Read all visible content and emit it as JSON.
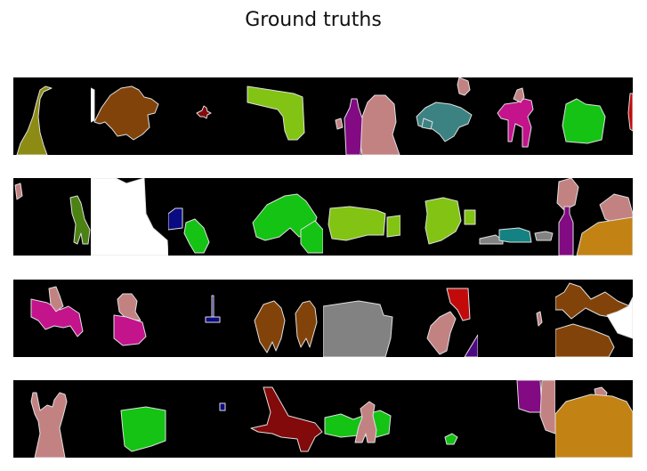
{
  "figure": {
    "title": "Ground truths",
    "background": "#ffffff",
    "tile_background": "#000000",
    "outline_color": "#e0e0e0",
    "rows": [
      {
        "tiles": [
          {
            "shapes": [
              {
                "class": "bird",
                "color": "#8c8c14"
              }
            ]
          },
          {
            "shapes": [
              {
                "class": "background-void",
                "color": "#ffffff"
              },
              {
                "class": "dog",
                "color": "#82430a"
              }
            ]
          },
          {
            "shapes": [
              {
                "class": "aeroplane",
                "color": "#820a0a"
              }
            ]
          },
          {
            "shapes": [
              {
                "class": "sofa",
                "color": "#82c314"
              }
            ]
          },
          {
            "shapes": [
              {
                "class": "person",
                "color": "#c38282"
              },
              {
                "class": "bottle",
                "color": "#820a82"
              }
            ]
          },
          {
            "shapes": [
              {
                "class": "motorbike",
                "color": "#3c8282"
              },
              {
                "class": "person",
                "color": "#c38282"
              }
            ]
          },
          {
            "shapes": [
              {
                "class": "horse",
                "color": "#c3148c"
              },
              {
                "class": "person",
                "color": "#c38282"
              }
            ]
          },
          {
            "shapes": [
              {
                "class": "pottedplant",
                "color": "#14c314"
              },
              {
                "class": "aeroplane",
                "color": "#c30a0a"
              }
            ]
          }
        ]
      },
      {
        "tiles": [
          {
            "shapes": [
              {
                "class": "person",
                "color": "#c38282"
              },
              {
                "class": "cow",
                "color": "#4b8214"
              }
            ]
          },
          {
            "shapes": [
              {
                "class": "background-void",
                "color": "#ffffff"
              }
            ]
          },
          {
            "shapes": [
              {
                "class": "tvmonitor",
                "color": "#0a0a82"
              },
              {
                "class": "bicycle",
                "color": "#14c314"
              }
            ]
          },
          {
            "shapes": [
              {
                "class": "bicycle",
                "color": "#14c314"
              },
              {
                "class": "pottedplant",
                "color": "#14c314"
              }
            ]
          },
          {
            "shapes": [
              {
                "class": "sofa",
                "color": "#82c314"
              }
            ]
          },
          {
            "shapes": [
              {
                "class": "sofa",
                "color": "#82c314"
              }
            ]
          },
          {
            "shapes": [
              {
                "class": "car",
                "color": "#828282"
              },
              {
                "class": "bus",
                "color": "#148282"
              }
            ]
          },
          {
            "shapes": [
              {
                "class": "person",
                "color": "#c38282"
              },
              {
                "class": "bottle",
                "color": "#820a82"
              },
              {
                "class": "diningtable",
                "color": "#c38214"
              }
            ]
          }
        ]
      },
      {
        "tiles": [
          {
            "shapes": [
              {
                "class": "horse",
                "color": "#c3148c"
              },
              {
                "class": "person",
                "color": "#c38282"
              }
            ]
          },
          {
            "shapes": [
              {
                "class": "person",
                "color": "#c38282"
              },
              {
                "class": "horse",
                "color": "#c3148c"
              }
            ]
          },
          {
            "shapes": [
              {
                "class": "tvmonitor",
                "color": "#0a0a82"
              }
            ]
          },
          {
            "shapes": [
              {
                "class": "dog",
                "color": "#82430a"
              }
            ]
          },
          {
            "shapes": [
              {
                "class": "car",
                "color": "#828282"
              }
            ]
          },
          {
            "shapes": [
              {
                "class": "person",
                "color": "#c38282"
              },
              {
                "class": "aeroplane",
                "color": "#c30a0a"
              },
              {
                "class": "bottle",
                "color": "#4b0a82"
              }
            ]
          },
          {
            "shapes": [
              {
                "class": "person",
                "color": "#c38282"
              }
            ]
          },
          {
            "shapes": [
              {
                "class": "dog",
                "color": "#82430a"
              },
              {
                "class": "background-void",
                "color": "#ffffff"
              }
            ]
          }
        ]
      },
      {
        "tiles": [
          {
            "shapes": [
              {
                "class": "person",
                "color": "#c38282"
              }
            ]
          },
          {
            "shapes": [
              {
                "class": "pottedplant",
                "color": "#14c314"
              }
            ]
          },
          {
            "shapes": [
              {
                "class": "tvmonitor",
                "color": "#0a0a82"
              }
            ]
          },
          {
            "shapes": [
              {
                "class": "aeroplane",
                "color": "#820a0a"
              }
            ]
          },
          {
            "shapes": [
              {
                "class": "chair",
                "color": "#14c314"
              },
              {
                "class": "person",
                "color": "#c38282"
              }
            ]
          },
          {
            "shapes": [
              {
                "class": "bicycle",
                "color": "#14c314"
              }
            ]
          },
          {
            "shapes": [
              {
                "class": "bottle",
                "color": "#820a82"
              },
              {
                "class": "person",
                "color": "#c38282"
              }
            ]
          },
          {
            "shapes": [
              {
                "class": "diningtable",
                "color": "#c38214"
              },
              {
                "class": "person",
                "color": "#c38282"
              }
            ]
          }
        ]
      }
    ]
  }
}
